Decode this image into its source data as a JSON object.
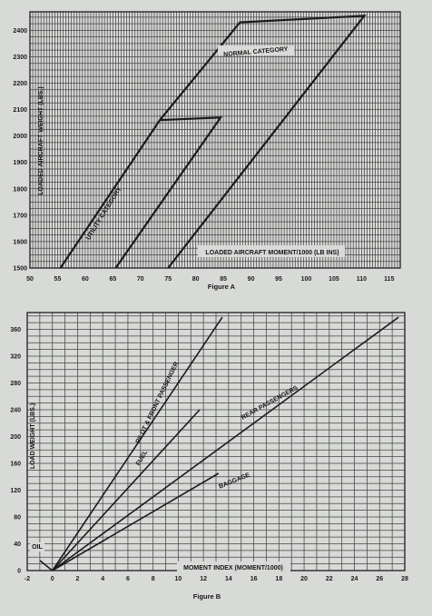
{
  "chart_data": [
    {
      "type": "line",
      "caption": "Figure A",
      "xlabel": "LOADED AIRCRAFT MOMENT/1000 (LB INS)",
      "ylabel": "LOADED AIRCRAFT WEIGHT (LBS.)",
      "xlim": [
        50,
        117
      ],
      "ylim": [
        1500,
        2470
      ],
      "x_ticks": [
        50,
        55,
        60,
        65,
        70,
        75,
        80,
        85,
        90,
        95,
        100,
        105,
        110,
        115
      ],
      "y_ticks": [
        1500,
        1600,
        1700,
        1800,
        1900,
        2000,
        2100,
        2200,
        2300,
        2400
      ],
      "grid": true,
      "series": [
        {
          "name": "NORMAL CATEGORY",
          "points": [
            [
              75.0,
              1500
            ],
            [
              110.5,
              2455
            ],
            [
              88.0,
              2430
            ],
            [
              73.5,
              2060
            ]
          ]
        },
        {
          "name": "UTILITY CATEGORY",
          "points": [
            [
              55.5,
              1500
            ],
            [
              73.5,
              2060
            ],
            [
              84.5,
              2070
            ],
            [
              65.5,
              1500
            ]
          ]
        }
      ]
    },
    {
      "type": "line",
      "caption": "Figure B",
      "xlabel": "MOMENT INDEX (MOMENT/1000)",
      "ylabel": "LOAD WEIGHT (LBS.)",
      "xlim": [
        -2,
        28
      ],
      "ylim": [
        0,
        385
      ],
      "x_ticks": [
        -2,
        0,
        2,
        4,
        6,
        8,
        10,
        12,
        14,
        16,
        18,
        20,
        22,
        24,
        26,
        28
      ],
      "y_ticks": [
        0,
        40,
        80,
        120,
        160,
        200,
        240,
        280,
        320,
        360
      ],
      "grid": true,
      "series": [
        {
          "name": "PILOT & FRONT PASSENGER",
          "points": [
            [
              0,
              0
            ],
            [
              13.5,
              378
            ]
          ]
        },
        {
          "name": "FUEL",
          "points": [
            [
              0,
              0
            ],
            [
              11.7,
              240
            ]
          ]
        },
        {
          "name": "REAR PASSENGERS",
          "points": [
            [
              0,
              0
            ],
            [
              27.5,
              378
            ]
          ]
        },
        {
          "name": "BAGGAGE",
          "points": [
            [
              0,
              0
            ],
            [
              13.2,
              145
            ]
          ]
        },
        {
          "name": "OIL",
          "points": [
            [
              -1.0,
              15
            ],
            [
              0,
              0
            ]
          ]
        }
      ]
    }
  ]
}
